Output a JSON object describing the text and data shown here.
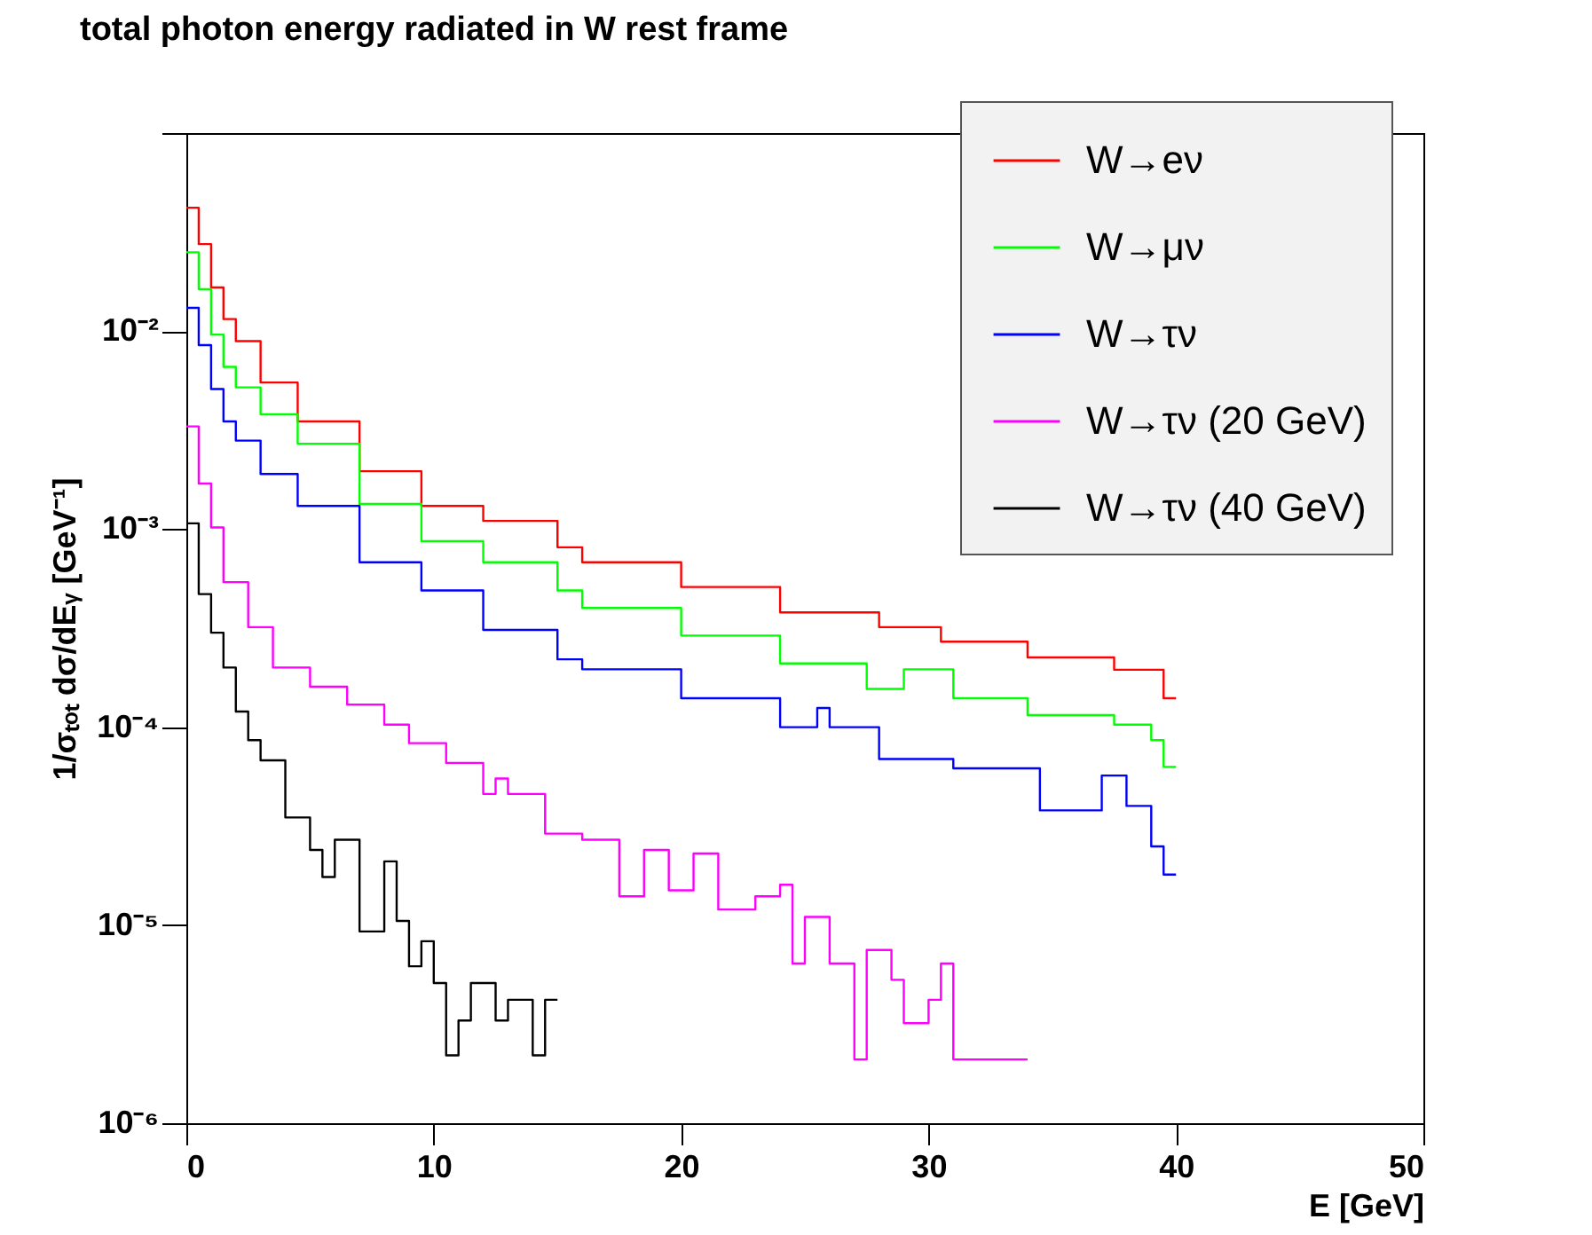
{
  "chart_data": {
    "type": "step",
    "title": "total photon energy radiated in W rest frame",
    "xlabel": "E [GeV]",
    "ylabel": "1/σₜₒₜ dσ/dEᵧ [GeV⁻¹]",
    "xlim": [
      0,
      50
    ],
    "xticks": [
      0,
      10,
      20,
      30,
      40,
      50
    ],
    "ylim": [
      1e-06,
      0.1
    ],
    "yticks": [
      {
        "value": 1e-06,
        "label": "10⁻⁶"
      },
      {
        "value": 1e-05,
        "label": "10⁻⁵"
      },
      {
        "value": 0.0001,
        "label": "10⁻⁴"
      },
      {
        "value": 0.001,
        "label": "10⁻³"
      },
      {
        "value": 0.01,
        "label": "10⁻²"
      },
      {
        "value": 0.1,
        "label": null
      }
    ],
    "log": "y",
    "grid": false,
    "legend": "top right",
    "marker": "none",
    "line_style": "solid",
    "series": [
      {
        "name": "W→eν",
        "color": "#ff0000",
        "x": [
          0,
          0.5,
          1,
          1.5,
          2,
          3,
          4.5,
          7,
          9.5,
          12,
          15,
          16,
          20,
          24,
          28,
          30.5,
          34,
          37.5,
          39.5,
          40
        ],
        "values": [
          0.042,
          0.0275,
          0.0166,
          0.0115,
          0.0089,
          0.0055,
          0.0035,
          0.00196,
          0.00131,
          0.0011,
          0.00081,
          0.00068,
          0.00051,
          0.00038,
          0.00032,
          0.00027,
          0.000225,
          0.000195,
          0.00014,
          0.00014
        ]
      },
      {
        "name": "W→μν",
        "color": "#00ff00",
        "x": [
          0,
          0.5,
          1,
          1.5,
          2,
          3,
          4.5,
          7,
          9.5,
          12,
          15,
          16,
          20,
          24,
          27.5,
          29,
          31,
          34,
          37.5,
          39,
          39.5,
          40
        ],
        "values": [
          0.025,
          0.0163,
          0.0096,
          0.0066,
          0.0052,
          0.0038,
          0.0027,
          0.00134,
          0.00087,
          0.00068,
          0.00049,
          0.0004,
          0.00029,
          0.00021,
          0.000156,
          0.000196,
          0.00014,
          0.000115,
          0.000103,
          8.6e-05,
          6.3e-05,
          6.3e-05
        ]
      },
      {
        "name": "W→τν",
        "color": "#0000ff",
        "x": [
          0,
          0.5,
          1,
          1.5,
          2,
          3,
          4.5,
          7,
          9.5,
          12,
          15,
          16,
          20,
          24,
          25.5,
          26,
          28,
          31,
          34.5,
          37,
          38,
          39,
          39.5,
          40
        ],
        "values": [
          0.0131,
          0.0085,
          0.0051,
          0.0035,
          0.0028,
          0.0019,
          0.00131,
          0.00068,
          0.00049,
          0.00031,
          0.00022,
          0.000196,
          0.00014,
          0.0001,
          0.000125,
          0.0001,
          6.9e-05,
          6.2e-05,
          3.8e-05,
          5.7e-05,
          4e-05,
          2.5e-05,
          1.8e-05,
          1.8e-05
        ]
      },
      {
        "name": "W→τν (20 GeV)",
        "color": "#ff00ff",
        "x": [
          0,
          0.5,
          1,
          1.5,
          2.5,
          3.5,
          5,
          6.5,
          8,
          9,
          10.5,
          12,
          12.5,
          13,
          14.5,
          16,
          17.5,
          18.5,
          19.5,
          20.5,
          21.5,
          23,
          24,
          24.5,
          25,
          26,
          27,
          27.5,
          28.5,
          29,
          30,
          30.5,
          31,
          32,
          33.5,
          34
        ],
        "values": [
          0.0033,
          0.0017,
          0.00102,
          0.00054,
          0.00032,
          0.0002,
          0.00016,
          0.00013,
          0.000103,
          8.3e-05,
          6.6e-05,
          4.6e-05,
          5.5e-05,
          4.6e-05,
          2.9e-05,
          2.7e-05,
          1.4e-05,
          2.4e-05,
          1.5e-05,
          2.3e-05,
          1.2e-05,
          1.4e-05,
          1.6e-05,
          6.4e-06,
          1.1e-05,
          6.4e-06,
          2.1e-06,
          7.5e-06,
          5.3e-06,
          3.2e-06,
          4.2e-06,
          6.4e-06,
          2.1e-06,
          2.1e-06,
          2.1e-06,
          2.1e-06
        ]
      },
      {
        "name": "W→τν (40 GeV)",
        "color": "#000000",
        "x": [
          0,
          0.5,
          1,
          1.5,
          2,
          2.5,
          3,
          4,
          5,
          5.5,
          6,
          7,
          8,
          8.5,
          9,
          9.5,
          10,
          10.5,
          11,
          11.5,
          12.5,
          13,
          14,
          14.5,
          15
        ],
        "values": [
          0.00107,
          0.00047,
          0.0003,
          0.0002,
          0.00012,
          8.6e-05,
          6.8e-05,
          3.5e-05,
          2.4e-05,
          1.75e-05,
          2.7e-05,
          9.3e-06,
          2.1e-05,
          1.05e-05,
          6.2e-06,
          8.3e-06,
          5.1e-06,
          2.2e-06,
          3.3e-06,
          5.1e-06,
          3.3e-06,
          4.2e-06,
          2.2e-06,
          4.2e-06,
          4.2e-06
        ]
      }
    ]
  }
}
